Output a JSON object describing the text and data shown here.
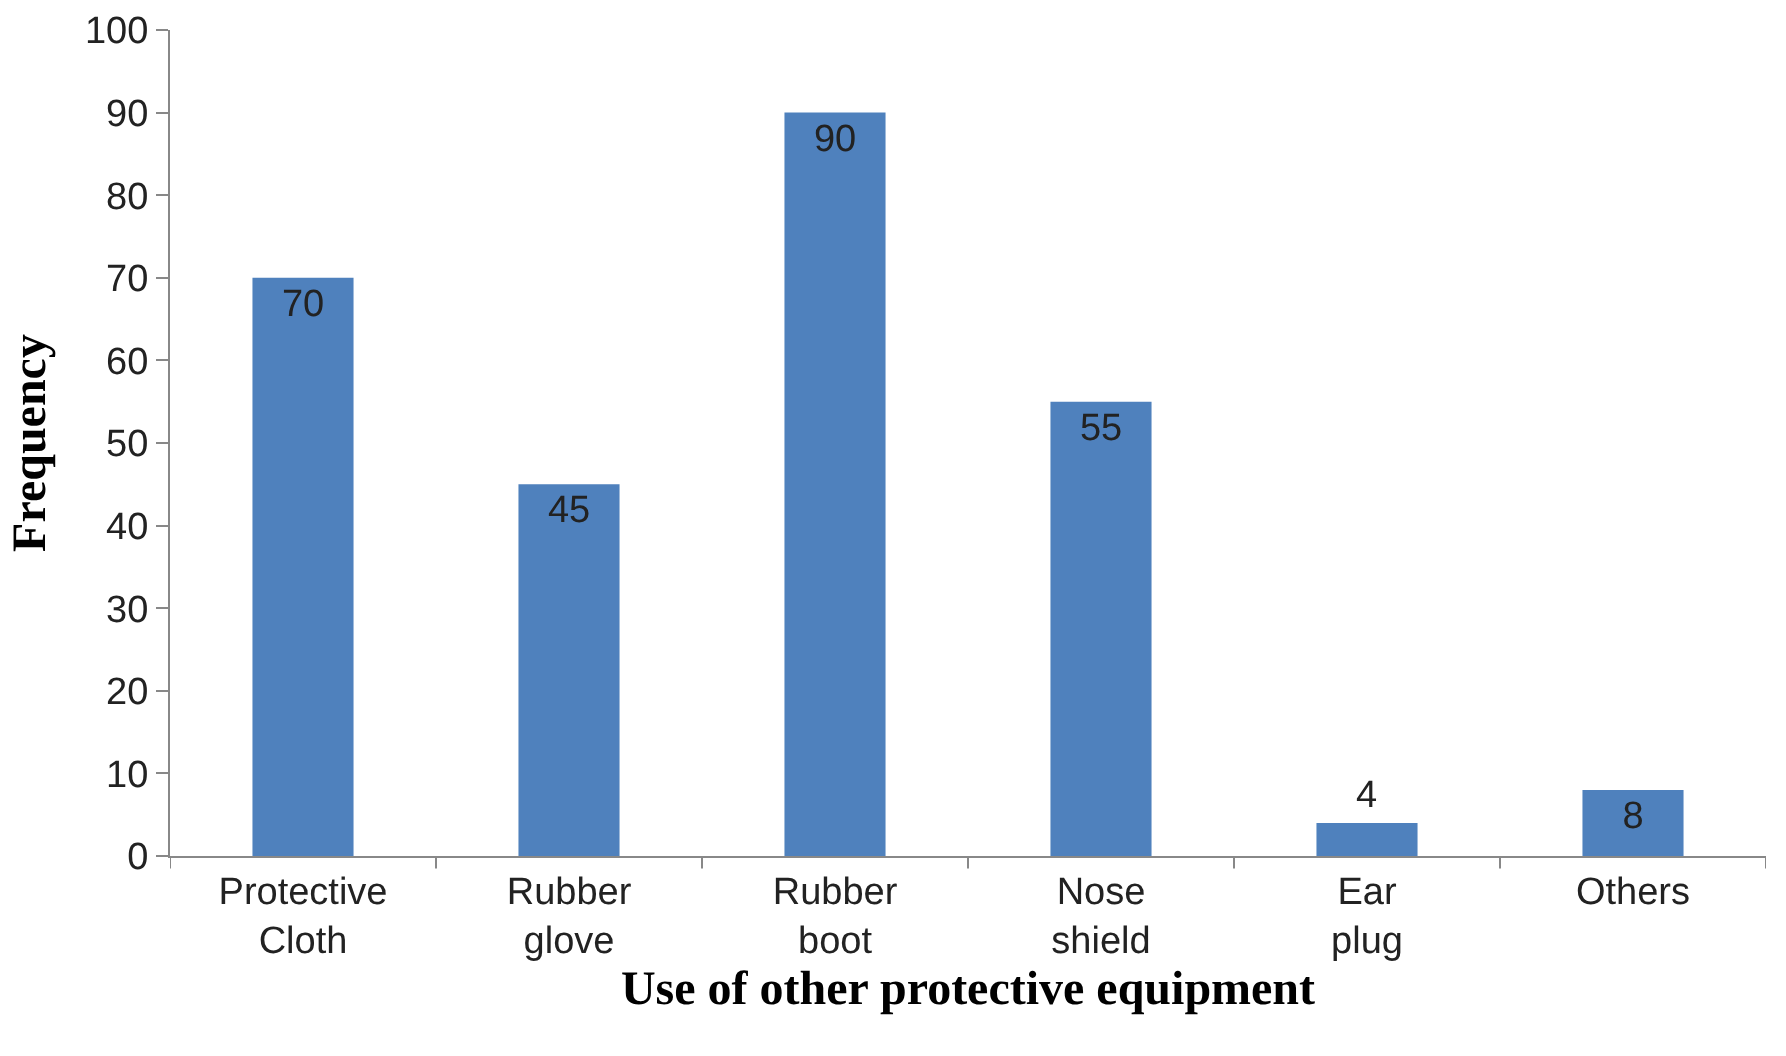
{
  "chart_data": {
    "type": "bar",
    "xlabel": "Use of other protective equipment",
    "ylabel": "Frequency",
    "categories": [
      "Protective Cloth",
      "Rubber glove",
      "Rubber boot",
      "Nose shield",
      "Ear plug",
      "Others"
    ],
    "values": [
      70,
      45,
      90,
      55,
      4,
      8
    ],
    "color": "#4f81bd",
    "ylim": [
      0,
      100
    ],
    "yticks": [
      0,
      10,
      20,
      30,
      40,
      50,
      60,
      70,
      80,
      90,
      100
    ],
    "grid": false,
    "data_labels": true
  }
}
